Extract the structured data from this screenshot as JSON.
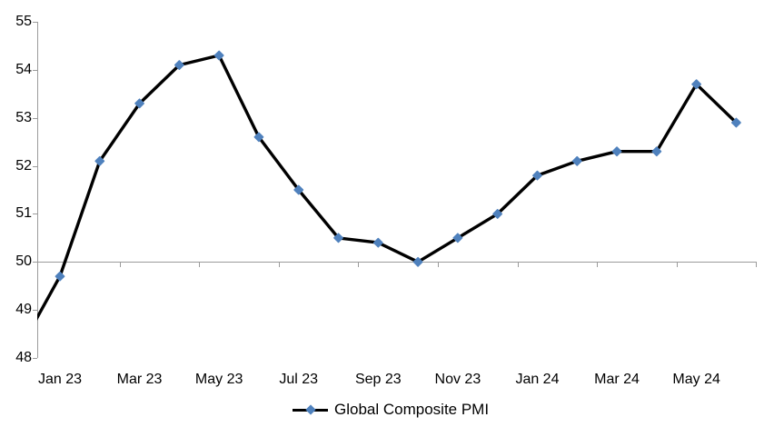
{
  "page": {
    "background": "#FFFFFF"
  },
  "chart_data": {
    "type": "line",
    "title": "",
    "xlabel": "",
    "ylabel": "",
    "x": [
      "Dec 22",
      "Jan 23",
      "Feb 23",
      "Mar 23",
      "Apr 23",
      "May 23",
      "Jun 23",
      "Jul 23",
      "Aug 23",
      "Sep 23",
      "Oct 23",
      "Nov 23",
      "Dec 23",
      "Jan 24",
      "Feb 24",
      "Mar 24",
      "Apr 24",
      "May 24",
      "Jun 24"
    ],
    "series": [
      {
        "name": "Global Composite PMI",
        "values": [
          48.2,
          49.7,
          52.1,
          53.3,
          54.1,
          54.3,
          52.6,
          51.5,
          50.5,
          50.4,
          50.0,
          50.5,
          51.0,
          51.8,
          52.1,
          52.3,
          52.3,
          53.7,
          52.9
        ],
        "line_color": "#000000",
        "marker": "diamond",
        "marker_color": "#4F81BD"
      }
    ],
    "x_tick_labels": [
      "Jan 23",
      "Mar 23",
      "May 23",
      "Jul 23",
      "Sep 23",
      "Nov 23",
      "Jan 24",
      "Mar 24",
      "May 24"
    ],
    "x_tick_indices": [
      1,
      3,
      5,
      7,
      9,
      11,
      13,
      15,
      17
    ],
    "y_tick_labels": [
      "55",
      "54",
      "53",
      "52",
      "51",
      "50",
      "49",
      "48"
    ],
    "ylim": [
      48,
      55
    ],
    "y_step": 1,
    "x_axis_cross_value": 50,
    "axis_color": "#9B9B9B",
    "grid": "off (horizontal category-axis line drawn at value 50 with boundary ticks)",
    "legend_position": "bottom-center",
    "first_point_clipped_at_left_axis": true
  }
}
